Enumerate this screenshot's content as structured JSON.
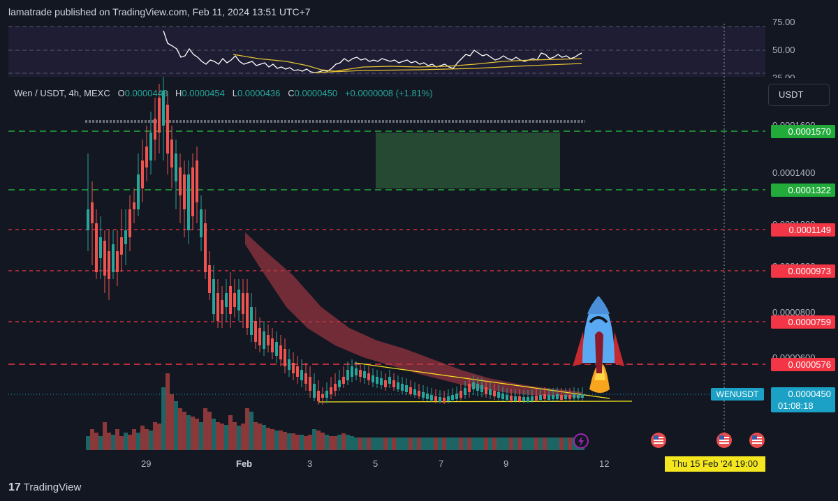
{
  "header": {
    "published_text": "lamatrade published on TradingView.com, Feb 11, 2024 13:51 UTC+7"
  },
  "legend": {
    "symbol": "Wen / USDT, 4h, MEXC",
    "open_label": "O",
    "open": "0.0000443",
    "high_label": "H",
    "high": "0.0000454",
    "low_label": "L",
    "low": "0.0000436",
    "close_label": "C",
    "close": "0.0000450",
    "change": "+0.0000008 (+1.81%)"
  },
  "currency_button": "USDT",
  "rsi_axis": [
    "75.00",
    "50.00",
    "25.00"
  ],
  "price_axis": [
    "0.0001600",
    "0.0001400",
    "0.0001200",
    "0.0001000",
    "0.0000800",
    "0.0000600"
  ],
  "price_levels": [
    {
      "value": "0.0001570",
      "kind": "support-green",
      "color": "#22ab3b"
    },
    {
      "value": "0.0001322",
      "kind": "support-green",
      "color": "#22ab3b"
    },
    {
      "value": "0.0001149",
      "kind": "resistance-red",
      "color": "#f23645"
    },
    {
      "value": "0.0000973",
      "kind": "resistance-red",
      "color": "#f23645"
    },
    {
      "value": "0.0000759",
      "kind": "resistance-red",
      "color": "#f23645"
    },
    {
      "value": "0.0000576",
      "kind": "resistance-red",
      "color": "#f23645"
    }
  ],
  "current_price": {
    "symbol": "WENUSDT",
    "price": "0.0000450",
    "countdown": "01:08:18"
  },
  "time_axis": [
    "29",
    "Feb",
    "3",
    "5",
    "7",
    "9",
    "12"
  ],
  "crosshair_date": "Thu 15 Feb '24   19:00",
  "footer": {
    "brand": "TradingView"
  },
  "colors": {
    "background": "#131722",
    "up": "#26a69a",
    "down": "#ef5350",
    "rsi_line": "#ffffff",
    "rsi_ma": "#e5c232"
  }
}
